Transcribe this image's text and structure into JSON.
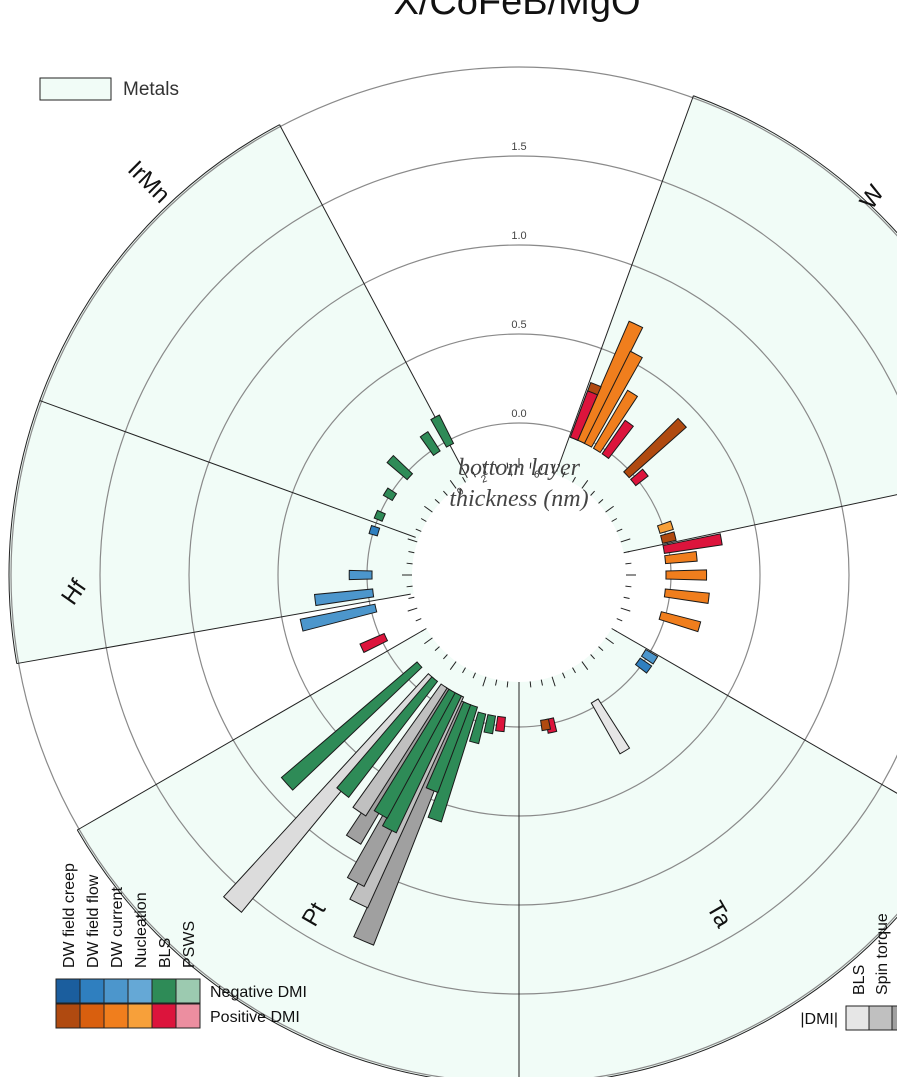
{
  "chart_data": {
    "type": "radial-bar",
    "title": "X/CoFeB/MgO",
    "center_label": [
      "bottom layer",
      "thickness (nm)"
    ],
    "radial_ticks": [
      "0.0",
      "0.5",
      "1.0",
      "1.5"
    ],
    "thickness_ticks": [
      "0",
      "2",
      "4",
      "6"
    ],
    "sectors": [
      "W",
      "Ta",
      "Pt",
      "Hf",
      "IrMn"
    ],
    "region_legend": "Metals",
    "region_color": "#f1fcf7",
    "method_legend": {
      "methods": [
        "DW field creep",
        "DW field flow",
        "DW current",
        "Nucleation",
        "BLS",
        "PSWS"
      ],
      "rows": [
        {
          "label": "Negative DMI",
          "colors": [
            "#1b5e9e",
            "#2f7fbf",
            "#4c96cc",
            "#65a8d6",
            "#2e8b57",
            "#9ccab0"
          ]
        },
        {
          "label": "Positive DMI",
          "colors": [
            "#b04a10",
            "#d95f0e",
            "#f07e1d",
            "#f7a03a",
            "#dc143c",
            "#ec8ea0"
          ]
        }
      ]
    },
    "abs_legend": {
      "label": "|DMI|",
      "methods": [
        "BLS",
        "Spin torque"
      ],
      "colors": [
        "#e6e6e6",
        "#c0c0c0",
        "#a0a0a0"
      ]
    },
    "series": [
      {
        "material": "W",
        "angle_deg": 22,
        "thickness_nm": 6.0,
        "dmi": 0.3,
        "color": "#b04a10"
      },
      {
        "material": "W",
        "angle_deg": 22,
        "thickness_nm": 6.0,
        "dmi": 0.25,
        "color": "#dc143c"
      },
      {
        "material": "W",
        "angle_deg": 25,
        "thickness_nm": 6.5,
        "dmi": 0.7,
        "color": "#f07e1d"
      },
      {
        "material": "W",
        "angle_deg": 28,
        "thickness_nm": 7.0,
        "dmi": 0.55,
        "color": "#f07e1d"
      },
      {
        "material": "W",
        "angle_deg": 32,
        "thickness_nm": 7.5,
        "dmi": 0.35,
        "color": "#f07e1d"
      },
      {
        "material": "W",
        "angle_deg": 36,
        "thickness_nm": 7.5,
        "dmi": 0.2,
        "color": "#dc143c"
      },
      {
        "material": "W",
        "angle_deg": 47,
        "thickness_nm": 7.0,
        "dmi": 0.4,
        "color": "#b04a10"
      },
      {
        "material": "W",
        "angle_deg": 51,
        "thickness_nm": 7.0,
        "dmi": 0.06,
        "color": "#dc143c"
      },
      {
        "material": "Ta",
        "angle_deg": 72,
        "thickness_nm": 7.0,
        "dmi": 0.05,
        "color": "#f7a03a"
      },
      {
        "material": "Ta",
        "angle_deg": 76,
        "thickness_nm": 7.0,
        "dmi": 0.05,
        "color": "#b04a10"
      },
      {
        "material": "Ta",
        "angle_deg": 80,
        "thickness_nm": 7.0,
        "dmi": 0.3,
        "color": "#dc143c"
      },
      {
        "material": "Ta",
        "angle_deg": 84,
        "thickness_nm": 7.0,
        "dmi": 0.15,
        "color": "#f07e1d"
      },
      {
        "material": "Ta",
        "angle_deg": 90,
        "thickness_nm": 7.0,
        "dmi": 0.2,
        "color": "#f07e1d"
      },
      {
        "material": "Ta",
        "angle_deg": 97,
        "thickness_nm": 7.0,
        "dmi": 0.22,
        "color": "#f07e1d"
      },
      {
        "material": "Ta",
        "angle_deg": 106,
        "thickness_nm": 7.0,
        "dmi": 0.2,
        "color": "#f07e1d"
      },
      {
        "material": "Ta",
        "angle_deg": 122,
        "thickness_nm": 6.5,
        "dmi": 0.05,
        "color": "#4c96cc"
      },
      {
        "material": "Ta",
        "angle_deg": 126,
        "thickness_nm": 6.5,
        "dmi": 0.05,
        "color": "#2f7fbf"
      },
      {
        "material": "Ta",
        "angle_deg": 149,
        "thickness_nm": 6.0,
        "dmi": 0.3,
        "color": "#e6e6e6"
      },
      {
        "material": "Ta",
        "angle_deg": 168,
        "thickness_nm": 4.5,
        "dmi": 0.05,
        "color": "#dc143c"
      },
      {
        "material": "Ta",
        "angle_deg": 170,
        "thickness_nm": 4.5,
        "dmi": 0.03,
        "color": "#b04a10"
      },
      {
        "material": "Pt",
        "angle_deg": 187,
        "thickness_nm": 4.0,
        "dmi": 0.03,
        "color": "#dc143c"
      },
      {
        "material": "Pt",
        "angle_deg": 191,
        "thickness_nm": 4.0,
        "dmi": 0.05,
        "color": "#2e8b57"
      },
      {
        "material": "Pt",
        "angle_deg": 195,
        "thickness_nm": 4.0,
        "dmi": 0.12,
        "color": "#2e8b57"
      },
      {
        "material": "Pt",
        "angle_deg": 199,
        "thickness_nm": 3.5,
        "dmi": 0.6,
        "color": "#2e8b57"
      },
      {
        "material": "Pt",
        "angle_deg": 202,
        "thickness_nm": 3.5,
        "dmi": 0.45,
        "color": "#2e8b57"
      },
      {
        "material": "Pt",
        "angle_deg": 203,
        "thickness_nm": 3.5,
        "dmi": 1.38,
        "color": "#a0a0a0"
      },
      {
        "material": "Pt",
        "angle_deg": 206,
        "thickness_nm": 3.0,
        "dmi": 1.2,
        "color": "#c0c0c0"
      },
      {
        "material": "Pt",
        "angle_deg": 208,
        "thickness_nm": 3.0,
        "dmi": 1.1,
        "color": "#a0a0a0"
      },
      {
        "material": "Pt",
        "angle_deg": 207,
        "thickness_nm": 3.0,
        "dmi": 0.75,
        "color": "#2e8b57"
      },
      {
        "material": "Pt",
        "angle_deg": 210,
        "thickness_nm": 3.0,
        "dmi": 0.7,
        "color": "#2e8b57"
      },
      {
        "material": "Pt",
        "angle_deg": 212,
        "thickness_nm": 3.0,
        "dmi": 0.9,
        "color": "#a0a0a0"
      },
      {
        "material": "Pt",
        "angle_deg": 214,
        "thickness_nm": 3.0,
        "dmi": 0.75,
        "color": "#c0c0c0"
      },
      {
        "material": "Pt",
        "angle_deg": 219,
        "thickness_nm": 3.0,
        "dmi": 0.72,
        "color": "#2e8b57"
      },
      {
        "material": "Pt",
        "angle_deg": 221,
        "thickness_nm": 3.0,
        "dmi": 1.6,
        "color": "#dcdcdc"
      },
      {
        "material": "Pt",
        "angle_deg": 228,
        "thickness_nm": 3.0,
        "dmi": 0.9,
        "color": "#2e8b57"
      },
      {
        "material": "Hf",
        "angle_deg": 245,
        "thickness_nm": 5.0,
        "dmi": 0.12,
        "color": "#dc143c"
      },
      {
        "material": "Hf",
        "angle_deg": 257,
        "thickness_nm": 5.0,
        "dmi": 0.4,
        "color": "#4c96cc"
      },
      {
        "material": "Hf",
        "angle_deg": 263,
        "thickness_nm": 5.0,
        "dmi": 0.3,
        "color": "#4c96cc"
      },
      {
        "material": "Hf",
        "angle_deg": 270,
        "thickness_nm": 5.0,
        "dmi": 0.1,
        "color": "#4c96cc"
      },
      {
        "material": "IrMn",
        "angle_deg": 287,
        "thickness_nm": 5.0,
        "dmi": 0.02,
        "color": "#2f7fbf"
      },
      {
        "material": "IrMn",
        "angle_deg": 293,
        "thickness_nm": 5.0,
        "dmi": 0.02,
        "color": "#2e8b57"
      },
      {
        "material": "IrMn",
        "angle_deg": 302,
        "thickness_nm": 5.0,
        "dmi": 0.03,
        "color": "#2e8b57"
      },
      {
        "material": "IrMn",
        "angle_deg": 312,
        "thickness_nm": 5.0,
        "dmi": 0.12,
        "color": "#2e8b57"
      },
      {
        "material": "IrMn",
        "angle_deg": 326,
        "thickness_nm": 5.0,
        "dmi": 0.1,
        "color": "#2e8b57"
      },
      {
        "material": "IrMn",
        "angle_deg": 332,
        "thickness_nm": 5.0,
        "dmi": 0.15,
        "color": "#2e8b57"
      }
    ]
  }
}
